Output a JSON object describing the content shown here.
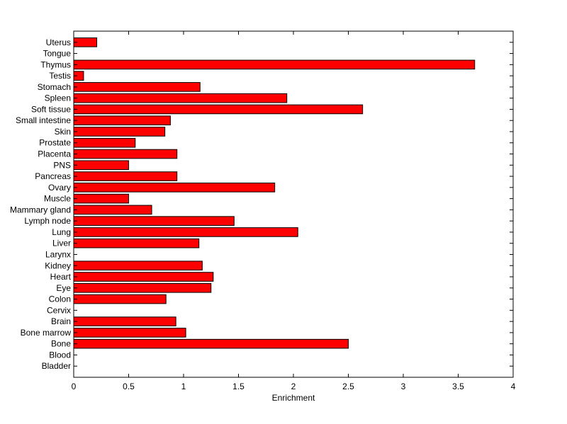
{
  "chart_data": {
    "type": "bar",
    "orientation": "horizontal",
    "categories": [
      "Uterus",
      "Tongue",
      "Thymus",
      "Testis",
      "Stomach",
      "Spleen",
      "Soft tissue",
      "Small intestine",
      "Skin",
      "Prostate",
      "Placenta",
      "PNS",
      "Pancreas",
      "Ovary",
      "Muscle",
      "Mammary gland",
      "Lymph node",
      "Lung",
      "Liver",
      "Larynx",
      "Kidney",
      "Heart",
      "Eye",
      "Colon",
      "Cervix",
      "Brain",
      "Bone marrow",
      "Bone",
      "Blood",
      "Bladder"
    ],
    "values": [
      0.21,
      0,
      3.65,
      0.09,
      1.15,
      1.94,
      2.63,
      0.88,
      0.83,
      0.56,
      0.94,
      0.5,
      0.94,
      1.83,
      0.5,
      0.71,
      1.46,
      2.04,
      1.14,
      0,
      1.17,
      1.27,
      1.25,
      0.84,
      0,
      0.93,
      1.02,
      2.5,
      0,
      0
    ],
    "xticks": [
      "0",
      "0.5",
      "1",
      "1.5",
      "2",
      "2.5",
      "3",
      "3.5",
      "4"
    ],
    "xlim": [
      0,
      4
    ],
    "xlabel": "Enrichment",
    "ylabel": "",
    "title": "",
    "grid": false,
    "bar_color": "#ff0000",
    "bar_edge_color": "#000000"
  }
}
